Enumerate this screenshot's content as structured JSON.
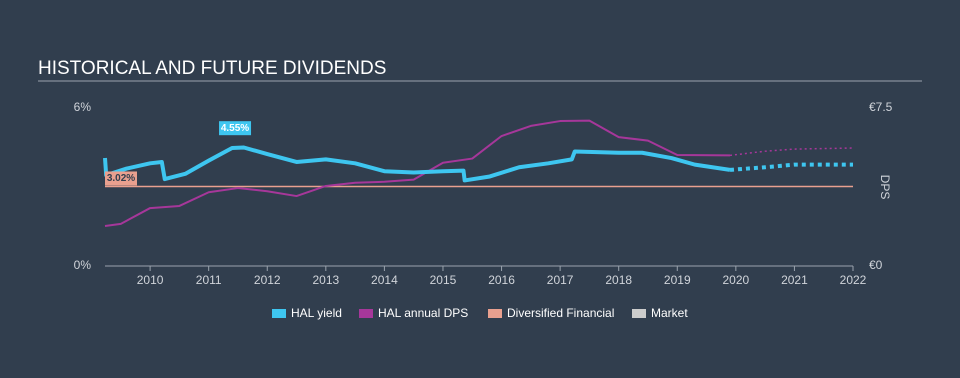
{
  "chart_data": {
    "type": "line",
    "title": "HISTORICAL AND FUTURE DIVIDENDS",
    "xlim": [
      2009.23,
      2022
    ],
    "xticks": [
      2010,
      2011,
      2012,
      2013,
      2014,
      2015,
      2016,
      2017,
      2018,
      2019,
      2020,
      2021,
      2022
    ],
    "ylim": [
      0,
      6
    ],
    "yticks": [
      {
        "value": 0,
        "label": "0%"
      },
      {
        "value": 6,
        "label": "6%"
      }
    ],
    "y2lim": [
      0,
      7.5
    ],
    "y2ticks": [
      {
        "value": 0,
        "label": "€0"
      },
      {
        "value": 7.5,
        "label": "€7.5"
      }
    ],
    "y2label": "DPS",
    "series": [
      {
        "name": "HAL yield",
        "color": "#3ec6f0",
        "x": [
          2009.23,
          2009.25,
          2009.6,
          2010.0,
          2010.2,
          2010.25,
          2010.6,
          2011.0,
          2011.4,
          2011.6,
          2012.0,
          2012.5,
          2013.0,
          2013.5,
          2014.0,
          2014.5,
          2015.0,
          2015.35,
          2015.37,
          2015.8,
          2016.3,
          2016.8,
          2017.2,
          2017.25,
          2018.0,
          2018.4,
          2018.9,
          2019.3,
          2019.9
        ],
        "values": [
          4.1,
          3.45,
          3.7,
          3.9,
          3.95,
          3.3,
          3.5,
          4.0,
          4.48,
          4.5,
          4.25,
          3.95,
          4.05,
          3.9,
          3.6,
          3.55,
          3.6,
          3.62,
          3.25,
          3.4,
          3.75,
          3.9,
          4.05,
          4.35,
          4.3,
          4.3,
          4.1,
          3.85,
          3.65
        ],
        "forecast": {
          "x": [
            2019.9,
            2020.5,
            2021,
            2022
          ],
          "values": [
            3.65,
            3.75,
            3.85,
            3.85
          ]
        }
      },
      {
        "name": "HAL annual DPS",
        "color": "#a6379a",
        "axis": "y2",
        "x": [
          2009.23,
          2009.5,
          2010.0,
          2010.5,
          2011.0,
          2011.5,
          2012.0,
          2012.5,
          2013.0,
          2013.5,
          2014.0,
          2014.5,
          2015.0,
          2015.5,
          2016.0,
          2016.5,
          2017.0,
          2017.5,
          2018.0,
          2018.5,
          2019.0,
          2019.9
        ],
        "values": [
          1.9,
          2.0,
          2.75,
          2.85,
          3.5,
          3.7,
          3.55,
          3.32,
          3.8,
          3.95,
          4.0,
          4.1,
          4.9,
          5.1,
          6.17,
          6.65,
          6.88,
          6.9,
          6.12,
          5.95,
          5.27,
          5.25
        ],
        "forecast": {
          "x": [
            2019.9,
            2020.5,
            2021,
            2022
          ],
          "values": [
            5.25,
            5.45,
            5.55,
            5.6
          ]
        }
      },
      {
        "name": "Diversified Financial",
        "color": "#e9a08f",
        "x": [
          2009.23,
          2022
        ],
        "values": [
          3.02,
          3.02
        ]
      },
      {
        "name": "Market",
        "color": "#cccccc",
        "x": [],
        "values": []
      }
    ],
    "annotations": [
      {
        "text": "4.55%",
        "x": 2011.45,
        "value": 4.55,
        "color": "#3ec6f0"
      },
      {
        "text": "3.02%",
        "x": 2009.23,
        "value": 3.02,
        "color": "#e9a08f"
      }
    ]
  }
}
